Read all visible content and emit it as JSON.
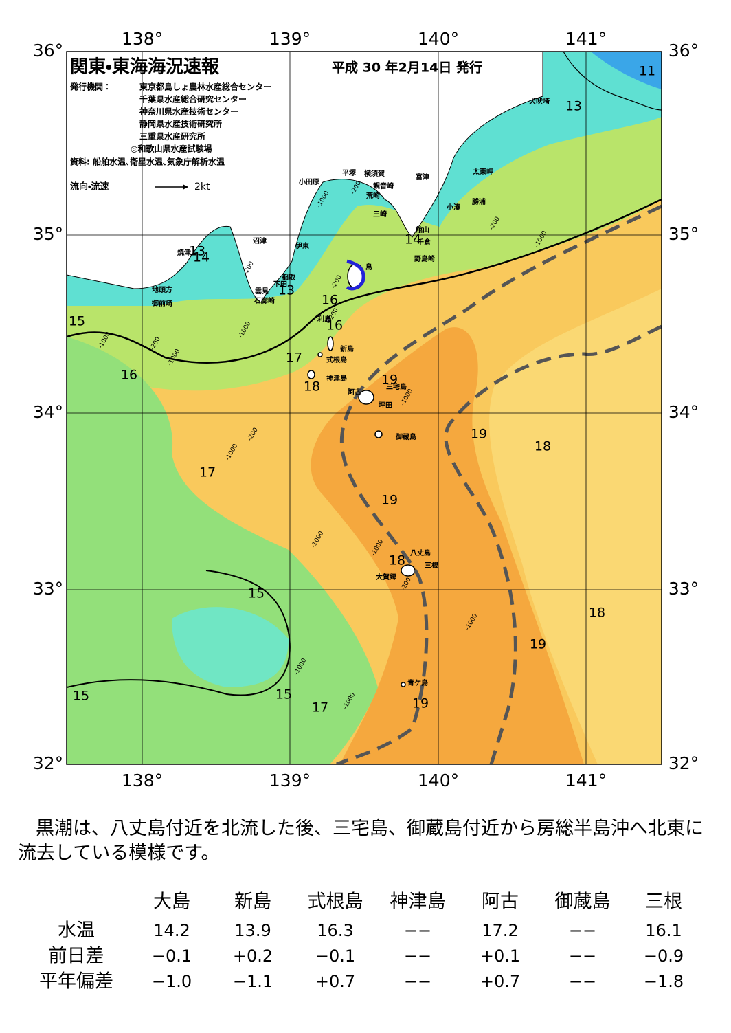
{
  "title": "関東・東海海況速報",
  "issue_date": "平成 30 年2月14日 発行",
  "publisher_label": "発行機関：",
  "publishers": [
    "東京都島しょ農林水産総合センター",
    "千葉県水産総合研究センター",
    "神奈川県水産技術センター",
    "静岡県水産技術研究所",
    "三重県水産研究所",
    "◎和歌山県水産試験場"
  ],
  "sources": "資料: 船舶水温､衛星水温､気象庁解析水温",
  "flow_legend": {
    "label": "流向・流速",
    "scale": "2kt"
  },
  "longitude_labels": [
    "138°",
    "139°",
    "140°",
    "141°"
  ],
  "latitude_labels": [
    "36°",
    "35°",
    "34°",
    "33°",
    "32°"
  ],
  "place_names": [
    "犬吠埼",
    "小田原",
    "平塚",
    "横須賀",
    "富津",
    "太東岬",
    "観音崎",
    "荒崎",
    "勝浦",
    "小湊",
    "三崎",
    "館山",
    "千倉",
    "野島崎",
    "沼津",
    "伊東",
    "焼津",
    "稲取",
    "下田",
    "雲見",
    "石廊崎",
    "地頭方",
    "御前崎",
    "島",
    "利島",
    "新島",
    "式根島",
    "神津島",
    "三宅島",
    "阿古",
    "坪田",
    "御蔵島",
    "八丈島",
    "三根",
    "大賀郷",
    "青ケ島"
  ],
  "isotherm_labels": [
    "11",
    "13",
    "14",
    "13",
    "14",
    "13",
    "16",
    "16",
    "15",
    "16",
    "17",
    "18",
    "19",
    "19",
    "18",
    "17",
    "19",
    "18",
    "15",
    "18",
    "19",
    "15",
    "15",
    "17",
    "19"
  ],
  "depth_labels": [
    "-200",
    "-1000",
    "-200",
    "-200",
    "-1000",
    "-1000",
    "-200",
    "-1000",
    "-200",
    "-1000",
    "-200",
    "-1000",
    "-1000",
    "-1000",
    "-200",
    "-1000",
    "-1000",
    "-1000",
    "-200",
    "-1000"
  ],
  "description": "黒潮は、八丈島付近を北流した後、三宅島、御蔵島付近から房総半島沖へ北東に流去している模様です。",
  "table": {
    "header": [
      "大島",
      "新島",
      "式根島",
      "神津島",
      "阿古",
      "御蔵島",
      "三根"
    ],
    "rows": [
      [
        "水温",
        "14.2",
        "13.9",
        "16.3",
        "−−",
        "17.2",
        "−−",
        "16.1"
      ],
      [
        "前日差",
        "−0.1",
        "+0.2",
        "−0.1",
        "−−",
        "+0.1",
        "−−",
        "−0.9"
      ],
      [
        "平年偏差",
        "−1.0",
        "−1.1",
        "+0.7",
        "−−",
        "+0.7",
        "−−",
        "−1.8"
      ]
    ]
  }
}
